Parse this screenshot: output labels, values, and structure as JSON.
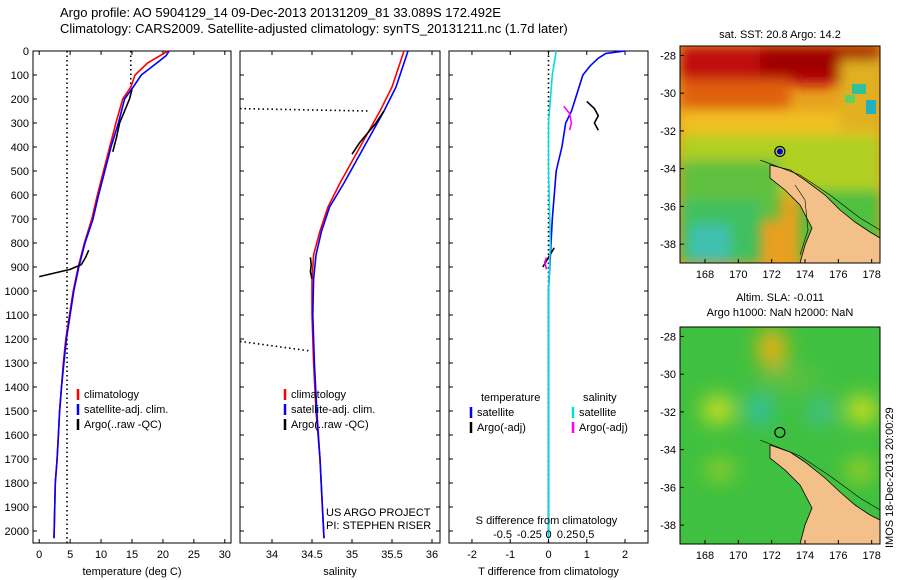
{
  "header": {
    "title_line1": "Argo profile: AO 5904129_14 09-Dec-2013 20131209_81 33.089S 172.492E",
    "title_line2": "Climatology: CARS2009. Satellite-adjusted climatology: synTS_20131211.nc (1.7d later)"
  },
  "side_label": "IMOS 18-Dec-2013 20:00:29",
  "colors": {
    "climatology": "#ff0000",
    "satellite": "#0000ff",
    "argo": "#000000",
    "sal_satellite": "#00e0e0",
    "sal_argo": "#ff00ff"
  },
  "chart_data": [
    {
      "type": "line",
      "id": "temperature",
      "xlabel": "temperature (deg C)",
      "ylim": [
        2050,
        0
      ],
      "xlim": [
        -1,
        31
      ],
      "xticks": [
        0,
        5,
        10,
        15,
        20,
        25,
        30
      ],
      "yticks": [
        0,
        100,
        200,
        300,
        400,
        500,
        600,
        700,
        800,
        900,
        1000,
        1100,
        1200,
        1300,
        1400,
        1500,
        1600,
        1700,
        1800,
        1900,
        2000
      ],
      "legend": [
        "climatology",
        "satellite-adj. clim.",
        "Argo(..raw -QC)"
      ],
      "series": [
        {
          "name": "climatology",
          "x": [
            20.8,
            19.5,
            17.5,
            15.5,
            14.8,
            13.5,
            12.4,
            11.4,
            10.4,
            9.4,
            8.5,
            7.3,
            6.3,
            5.5,
            4.9,
            4.3,
            3.9,
            3.6,
            3.3,
            3.1,
            2.9,
            2.6,
            2.4
          ],
          "y": [
            0,
            20,
            50,
            100,
            150,
            200,
            300,
            400,
            500,
            600,
            700,
            800,
            900,
            1000,
            1100,
            1200,
            1300,
            1400,
            1500,
            1600,
            1700,
            1800,
            2030
          ]
        },
        {
          "name": "satellite-adj. clim.",
          "x": [
            21.0,
            20.5,
            19.0,
            16.5,
            15.2,
            13.8,
            12.8,
            11.6,
            10.6,
            9.6,
            8.7,
            7.4,
            6.4,
            5.6,
            5.0,
            4.4,
            4.0,
            3.6,
            3.3,
            3.1,
            2.9,
            2.6,
            2.4
          ],
          "y": [
            0,
            20,
            50,
            100,
            150,
            200,
            300,
            400,
            500,
            600,
            700,
            800,
            900,
            1000,
            1100,
            1200,
            1300,
            1400,
            1500,
            1600,
            1700,
            1800,
            2030
          ]
        },
        {
          "name": "Argo(..raw -QC)",
          "x": [
            15.0,
            14.6,
            13.8,
            13.0,
            12.5,
            11.9
          ],
          "y": [
            160,
            200,
            250,
            300,
            360,
            420
          ]
        },
        {
          "name": "Argo(..raw -QC)",
          "x": [
            8.0,
            7.5,
            6.8,
            5.0,
            2.5,
            0.0
          ],
          "y": [
            830,
            860,
            890,
            910,
            925,
            940
          ]
        }
      ],
      "reference_lines": [
        {
          "x": [
            4.5,
            4.5
          ],
          "y": [
            0,
            2050
          ]
        },
        {
          "x": [
            14.8,
            14.8
          ],
          "y": [
            0,
            140
          ]
        }
      ]
    },
    {
      "type": "line",
      "id": "salinity",
      "xlabel": "salinity",
      "ylim": [
        2050,
        0
      ],
      "xlim": [
        33.6,
        36.1
      ],
      "xticks": [
        34,
        34.5,
        35,
        35.5,
        36
      ],
      "legend": [
        "climatology",
        "satellite-adj. clim.",
        "Argo(..raw -QC)"
      ],
      "annotation": [
        "US ARGO PROJECT",
        "PI: STEPHEN RISER"
      ],
      "series": [
        {
          "name": "climatology",
          "x": [
            35.65,
            35.6,
            35.5,
            35.35,
            35.1,
            34.85,
            34.7,
            34.6,
            34.52,
            34.5,
            34.5,
            34.52,
            34.55,
            34.6,
            34.63,
            34.65
          ],
          "y": [
            0,
            50,
            150,
            250,
            400,
            550,
            650,
            750,
            850,
            950,
            1100,
            1300,
            1500,
            1700,
            1900,
            2030
          ]
        },
        {
          "name": "satellite-adj. clim.",
          "x": [
            35.7,
            35.65,
            35.55,
            35.4,
            35.15,
            34.9,
            34.72,
            34.62,
            34.55,
            34.52,
            34.51,
            34.53,
            34.56,
            34.6,
            34.63,
            34.65
          ],
          "y": [
            0,
            50,
            150,
            250,
            400,
            550,
            650,
            750,
            850,
            950,
            1100,
            1300,
            1500,
            1700,
            1900,
            2030
          ]
        },
        {
          "name": "Argo(..raw -QC)",
          "x": [
            35.4,
            35.3,
            35.1,
            35.0
          ],
          "y": [
            250,
            300,
            380,
            430
          ]
        },
        {
          "name": "Argo(..raw -QC)",
          "x": [
            34.48,
            34.49,
            34.48,
            34.5
          ],
          "y": [
            860,
            890,
            920,
            950
          ]
        }
      ],
      "reference_lines": [
        {
          "x": [
            33.6,
            35.2
          ],
          "y": [
            240,
            250
          ]
        },
        {
          "x": [
            33.6,
            34.48
          ],
          "y": [
            1210,
            1250
          ]
        }
      ]
    },
    {
      "type": "line",
      "id": "difference",
      "xlabel": "T difference from climatology",
      "xlabel_top": "S difference from climatology",
      "ylim": [
        2050,
        0
      ],
      "xlim": [
        -2.6,
        2.6
      ],
      "xticks": [
        -2,
        -1,
        0,
        1,
        2
      ],
      "xticks_top": [
        "-0.5",
        "-0.25",
        "0",
        "0.25",
        "0.5"
      ],
      "legend_groups": [
        {
          "heading": "temperature",
          "items": [
            "satellite",
            "Argo(-adj)"
          ]
        },
        {
          "heading": "salinity",
          "items": [
            "satellite",
            "Argo(-adj)"
          ]
        }
      ],
      "series": [
        {
          "name": "temperature satellite",
          "x": [
            2.0,
            1.5,
            1.3,
            1.1,
            0.9,
            0.8,
            0.7,
            0.6,
            0.45,
            0.35,
            0.2,
            0.1,
            0.0,
            0.0,
            0.0
          ],
          "y": [
            0,
            10,
            30,
            60,
            100,
            150,
            200,
            250,
            300,
            400,
            500,
            700,
            1000,
            1500,
            2030
          ]
        },
        {
          "name": "temperature Argo(-adj)",
          "x": [
            1.0,
            1.2,
            1.3,
            1.2,
            1.3
          ],
          "y": [
            210,
            240,
            270,
            300,
            330
          ]
        },
        {
          "name": "temperature Argo(-adj)",
          "x": [
            0.15,
            0.0,
            -0.15
          ],
          "y": [
            820,
            860,
            900
          ]
        },
        {
          "name": "salinity satellite",
          "x": [
            0.2,
            0.1,
            0.05,
            0.0,
            0.0,
            0.05,
            0.0,
            0.0,
            0.0,
            0.0,
            0.0
          ],
          "y": [
            0,
            100,
            200,
            300,
            500,
            800,
            1000,
            1300,
            1600,
            1900,
            2030
          ]
        },
        {
          "name": "salinity Argo(-adj)",
          "x": [
            0.4,
            0.55,
            0.6,
            0.55
          ],
          "y": [
            230,
            260,
            300,
            330
          ]
        },
        {
          "name": "salinity Argo(-adj)",
          "x": [
            -0.05,
            -0.1,
            -0.05
          ],
          "y": [
            860,
            880,
            910
          ]
        }
      ],
      "reference_lines": [
        {
          "x": [
            0,
            0
          ],
          "y": [
            0,
            2050
          ]
        }
      ]
    },
    {
      "type": "heatmap",
      "id": "sst_map",
      "title": "sat. SST: 20.8  Argo: 14.2",
      "xlim": [
        166.5,
        178.5
      ],
      "ylim": [
        -39,
        -27.5
      ],
      "xticks": [
        168,
        170,
        172,
        174,
        176,
        178
      ],
      "yticks": [
        -28,
        -30,
        -32,
        -34,
        -36,
        -38
      ],
      "marker": {
        "lon": 172.492,
        "lat": -33.089
      }
    },
    {
      "type": "heatmap",
      "id": "sla_map",
      "title_line1": "Altim. SLA: -0.011",
      "title_line2": "Argo h1000: NaN h2000: NaN",
      "xlim": [
        166.5,
        178.5
      ],
      "ylim": [
        -39,
        -27.5
      ],
      "xticks": [
        168,
        170,
        172,
        174,
        176,
        178
      ],
      "yticks": [
        -28,
        -30,
        -32,
        -34,
        -36,
        -38
      ],
      "marker": {
        "lon": 172.492,
        "lat": -33.089
      }
    }
  ]
}
